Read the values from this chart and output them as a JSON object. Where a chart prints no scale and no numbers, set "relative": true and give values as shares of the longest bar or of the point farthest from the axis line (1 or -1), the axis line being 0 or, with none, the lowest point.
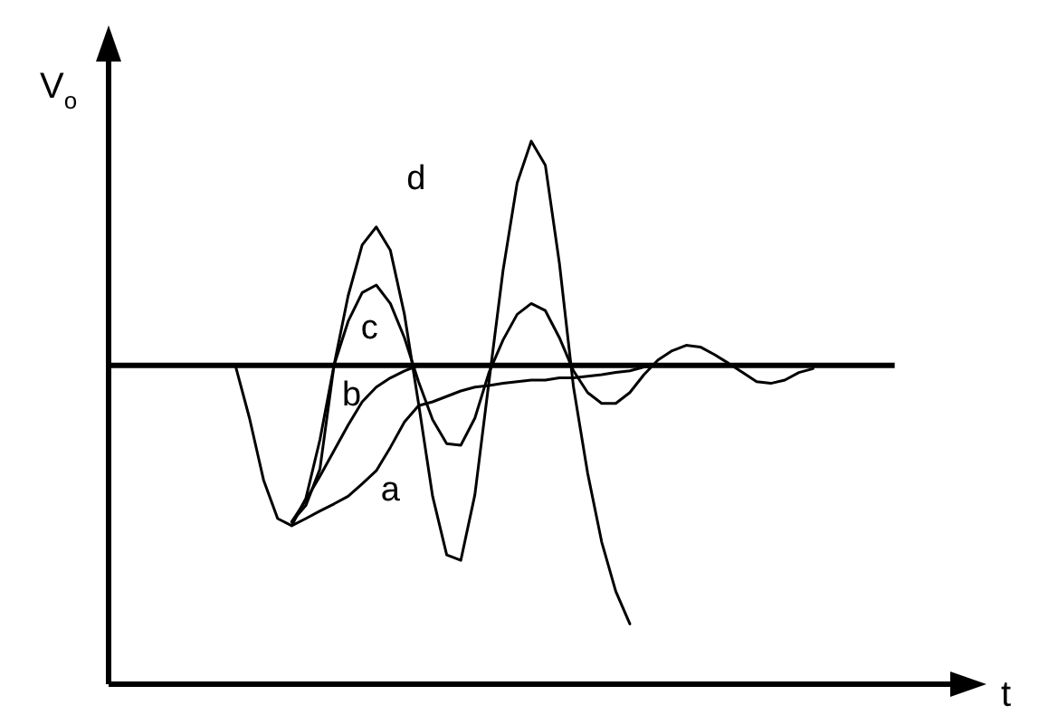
{
  "chart_data": {
    "type": "line",
    "relative": true,
    "xlabel": "t",
    "ylabel": "V$_{o}$",
    "legend": false,
    "marker": "none",
    "line_style": "solid",
    "categories": [
      null,
      null,
      null,
      null,
      null,
      null,
      null,
      null,
      null,
      null,
      null,
      null,
      null,
      null,
      null,
      null,
      null,
      null,
      null,
      null,
      null,
      null,
      null,
      null,
      null,
      null,
      null,
      null,
      null,
      null,
      null,
      null,
      null,
      null,
      null,
      null,
      null,
      null,
      null,
      null,
      null,
      null,
      null,
      null,
      null,
      null,
      null,
      null,
      null,
      null,
      null,
      null,
      null,
      null,
      null,
      null,
      null,
      null,
      null,
      null,
      null
    ],
    "ref_lines": [
      {
        "axis": "y",
        "value": 0.587,
        "color": "#000000"
      }
    ],
    "series": [
      {
        "name": "a",
        "color": "#000000",
        "values": [
          null,
          null,
          null,
          null,
          null,
          null,
          null,
          null,
          null,
          null,
          null,
          null,
          null,
          0.292,
          0.305,
          0.319,
          0.332,
          0.346,
          0.369,
          0.393,
          0.436,
          0.483,
          0.513,
          0.52,
          0.53,
          0.54,
          0.547,
          0.55,
          0.554,
          0.557,
          0.56,
          0.56,
          0.564,
          0.564,
          0.567,
          0.57,
          0.574,
          0.577,
          0.584,
          0.587,
          null,
          null,
          null,
          null,
          null,
          null,
          null,
          null,
          null,
          null,
          null,
          null,
          null,
          null,
          null,
          null,
          null,
          null,
          null,
          null,
          null
        ]
      },
      {
        "name": "b",
        "color": "#000000",
        "values": [
          null,
          null,
          null,
          null,
          null,
          null,
          null,
          null,
          null,
          null,
          null,
          null,
          null,
          0.299,
          0.339,
          0.383,
          0.43,
          0.477,
          0.52,
          0.547,
          0.564,
          0.577,
          0.587,
          null,
          null,
          null,
          null,
          null,
          null,
          null,
          null,
          null,
          null,
          null,
          null,
          null,
          null,
          null,
          null,
          null,
          null,
          null,
          null,
          null,
          null,
          null,
          null,
          null,
          null,
          null,
          null,
          null,
          null,
          null,
          null,
          null,
          null,
          null,
          null,
          null,
          null
        ]
      },
      {
        "name": "c",
        "color": "#000000",
        "values": [
          null,
          null,
          null,
          null,
          null,
          null,
          null,
          null,
          null,
          null,
          null,
          null,
          null,
          0.299,
          0.329,
          0.396,
          0.587,
          0.668,
          0.721,
          0.735,
          0.701,
          0.638,
          0.557,
          0.487,
          0.443,
          0.44,
          0.49,
          0.574,
          0.634,
          0.681,
          0.701,
          0.688,
          0.638,
          0.577,
          0.537,
          0.517,
          0.517,
          0.537,
          0.57,
          0.597,
          0.614,
          0.624,
          0.621,
          0.607,
          0.591,
          0.574,
          0.557,
          0.554,
          0.56,
          0.574,
          0.581,
          null,
          null,
          null,
          null,
          null,
          null,
          null,
          null,
          null,
          null
        ]
      },
      {
        "name": "d",
        "color": "#000000",
        "values": [
          null,
          null,
          null,
          null,
          null,
          null,
          null,
          null,
          null,
          0.587,
          0.49,
          0.376,
          0.305,
          0.292,
          0.342,
          0.45,
          0.587,
          0.715,
          0.809,
          0.842,
          0.799,
          0.681,
          0.517,
          0.346,
          0.238,
          0.228,
          0.349,
          0.557,
          0.762,
          0.923,
          1,
          0.956,
          0.775,
          0.547,
          0.389,
          0.262,
          0.171,
          0.111,
          null,
          null,
          null,
          null,
          null,
          null,
          null,
          null,
          null,
          null,
          null,
          null,
          null,
          null,
          null,
          null,
          null,
          null,
          null,
          null,
          null,
          null,
          null
        ]
      }
    ]
  }
}
